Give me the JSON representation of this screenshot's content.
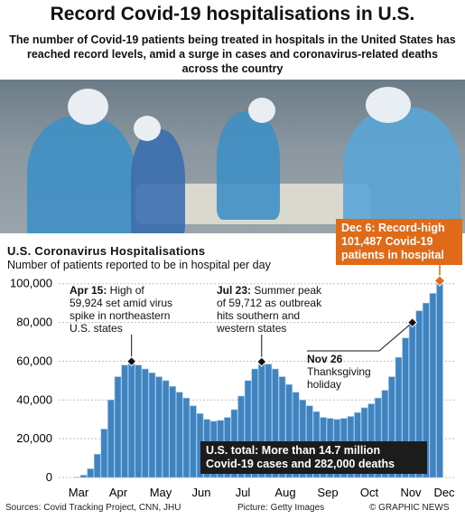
{
  "header": {
    "title": "Record Covid-19 hospitalisations in U.S.",
    "subtitle": "The number of Covid-19 patients being treated in hospitals in the United States has reached record levels, amid a surge in cases and coronavirus-related deaths across the country"
  },
  "photo": {
    "icon": "hospital-ward-photo"
  },
  "chart_data": {
    "type": "area",
    "title": "U.S. Coronavirus Hospitalisations",
    "subtitle": "Number of patients reported to be in hospital per day",
    "x_ticks": [
      "Mar",
      "Apr",
      "May",
      "Jun",
      "Jul",
      "Aug",
      "Sep",
      "Oct",
      "Nov",
      "Dec"
    ],
    "y_ticks": [
      "0",
      "20,000",
      "40,000",
      "60,000",
      "80,000",
      "100,000"
    ],
    "ylim": [
      0,
      105000
    ],
    "series": [
      {
        "values": [
          200,
          1200,
          4500,
          12000,
          25000,
          40000,
          52000,
          58000,
          59924,
          58000,
          56000,
          54000,
          52000,
          50000,
          47000,
          44000,
          41000,
          37000,
          33000,
          30000,
          29000,
          29500,
          31000,
          35000,
          42000,
          50000,
          56000,
          59712,
          58500,
          56000,
          52000,
          48000,
          44000,
          40000,
          37000,
          34000,
          31000,
          30500,
          30000,
          30500,
          31500,
          33500,
          36000,
          38000,
          41000,
          45000,
          52000,
          62000,
          72000,
          80000,
          86000,
          90000,
          95000,
          101487
        ],
        "dates": "Mar 15 - Dec 6 (approx. weekly)"
      }
    ],
    "colors": {
      "bars": "#3f84c0",
      "bars_light": "#9fc4e4",
      "accent": "#e06a18"
    }
  },
  "annotations": {
    "apr15_title": "Apr 15:",
    "apr15_l1": " High of",
    "apr15_l2": "59,924 set amid virus",
    "apr15_l3": "spike in northeastern",
    "apr15_l4": "U.S. states",
    "jul23_title": "Jul 23:",
    "jul23_l1": " Summer peak",
    "jul23_l2": "of 59,712 as outbreak",
    "jul23_l3": "hits southern and",
    "jul23_l4": "western states",
    "nov26_title": "Nov 26",
    "nov26_l1": "Thanksgiving",
    "nov26_l2": "holiday",
    "dec6_l1": "Dec 6: Record-high",
    "dec6_l2": "101,487 Covid-19",
    "dec6_l3": "patients in hospital"
  },
  "totals": {
    "line1": "U.S. total: More than 14.7 million",
    "line2": "Covid-19 cases and 282,000 deaths"
  },
  "footer": {
    "sources": "Sources: Covid Tracking Project, CNN, JHU",
    "picture": "Picture: Getty Images",
    "brand": "© GRAPHIC NEWS"
  }
}
